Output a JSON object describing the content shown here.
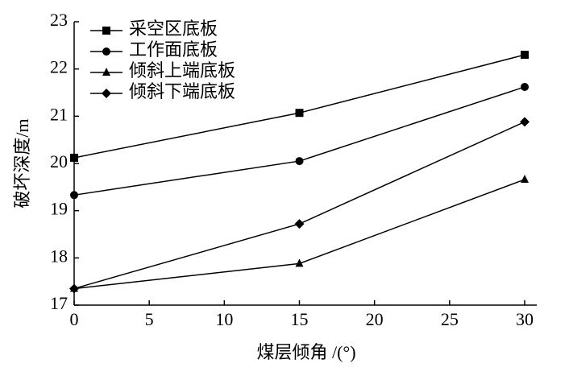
{
  "chart_data": {
    "type": "line",
    "x_label": "煤层倾角 /(°)",
    "y_label": "破坏深度/m",
    "x": [
      0,
      15,
      30
    ],
    "series": [
      {
        "name": "采空区底板",
        "color": "#000000",
        "marker": "square",
        "values": [
          20.12,
          21.07,
          22.3
        ]
      },
      {
        "name": "工作面底板",
        "color": "#000000",
        "marker": "circle",
        "values": [
          19.33,
          20.05,
          21.62
        ]
      },
      {
        "name": "倾斜上端底板",
        "color": "#000000",
        "marker": "triangle",
        "values": [
          17.35,
          17.88,
          19.66
        ]
      },
      {
        "name": "倾斜下端底板",
        "color": "#000000",
        "marker": "diamond",
        "values": [
          17.35,
          18.72,
          20.88
        ]
      }
    ],
    "xlim": [
      0,
      30
    ],
    "xticks": [
      0,
      5,
      10,
      15,
      20,
      25,
      30
    ],
    "ylim": [
      17,
      23
    ],
    "yticks": [
      17,
      18,
      19,
      20,
      21,
      22,
      23
    ],
    "legend": "upper left",
    "grid": false
  }
}
